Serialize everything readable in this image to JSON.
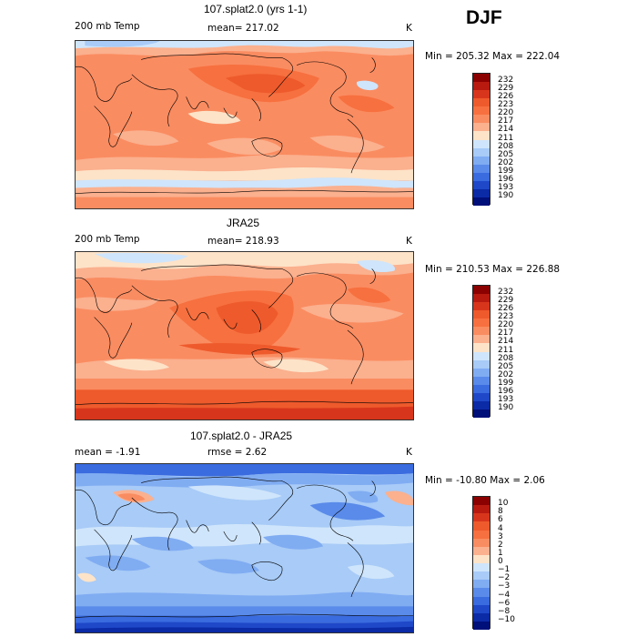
{
  "season": "DJF",
  "panels": [
    {
      "title": "107.splat2.0 (yrs 1-1)",
      "left_label": "200 mb Temp",
      "center_label": "mean= 217.02",
      "units": "K",
      "minmax": "Min = 205.32 Max = 222.04",
      "colorbar": {
        "labels": [
          "232",
          "229",
          "226",
          "223",
          "220",
          "217",
          "214",
          "211",
          "208",
          "205",
          "202",
          "199",
          "196",
          "193",
          "190"
        ],
        "colors": [
          "#8b0000",
          "#b81a10",
          "#d8361c",
          "#ee5a2c",
          "#f7703f",
          "#fa8c61",
          "#fbb08e",
          "#fde3c8",
          "#cfe5fb",
          "#a8cbf7",
          "#80acf2",
          "#5a8bea",
          "#3a6bdf",
          "#1e48c8",
          "#0b2aa6",
          "#00107a"
        ]
      }
    },
    {
      "title": "JRA25",
      "left_label": "200 mb Temp",
      "center_label": "mean= 218.93",
      "units": "K",
      "minmax": "Min = 210.53 Max = 226.88",
      "colorbar": {
        "labels": [
          "232",
          "229",
          "226",
          "223",
          "220",
          "217",
          "214",
          "211",
          "208",
          "205",
          "202",
          "199",
          "196",
          "193",
          "190"
        ],
        "colors": [
          "#8b0000",
          "#b81a10",
          "#d8361c",
          "#ee5a2c",
          "#f7703f",
          "#fa8c61",
          "#fbb08e",
          "#fde3c8",
          "#cfe5fb",
          "#a8cbf7",
          "#80acf2",
          "#5a8bea",
          "#3a6bdf",
          "#1e48c8",
          "#0b2aa6",
          "#00107a"
        ]
      }
    },
    {
      "title": "107.splat2.0 - JRA25",
      "left_label": "mean =   -1.91",
      "center_label": "rmse =    2.62",
      "units": "K",
      "minmax": "Min = -10.80 Max =   2.06",
      "colorbar": {
        "labels": [
          "10",
          "8",
          "6",
          "4",
          "3",
          "2",
          "1",
          "0",
          "−1",
          "−2",
          "−3",
          "−4",
          "−6",
          "−8",
          "−10"
        ],
        "colors": [
          "#8b0000",
          "#b81a10",
          "#d8361c",
          "#ee5a2c",
          "#f7703f",
          "#fa8c61",
          "#fbb08e",
          "#fde3c8",
          "#cfe5fb",
          "#a8cbf7",
          "#80acf2",
          "#5a8bea",
          "#3a6bdf",
          "#1e48c8",
          "#0b2aa6",
          "#00107a"
        ]
      }
    }
  ]
}
